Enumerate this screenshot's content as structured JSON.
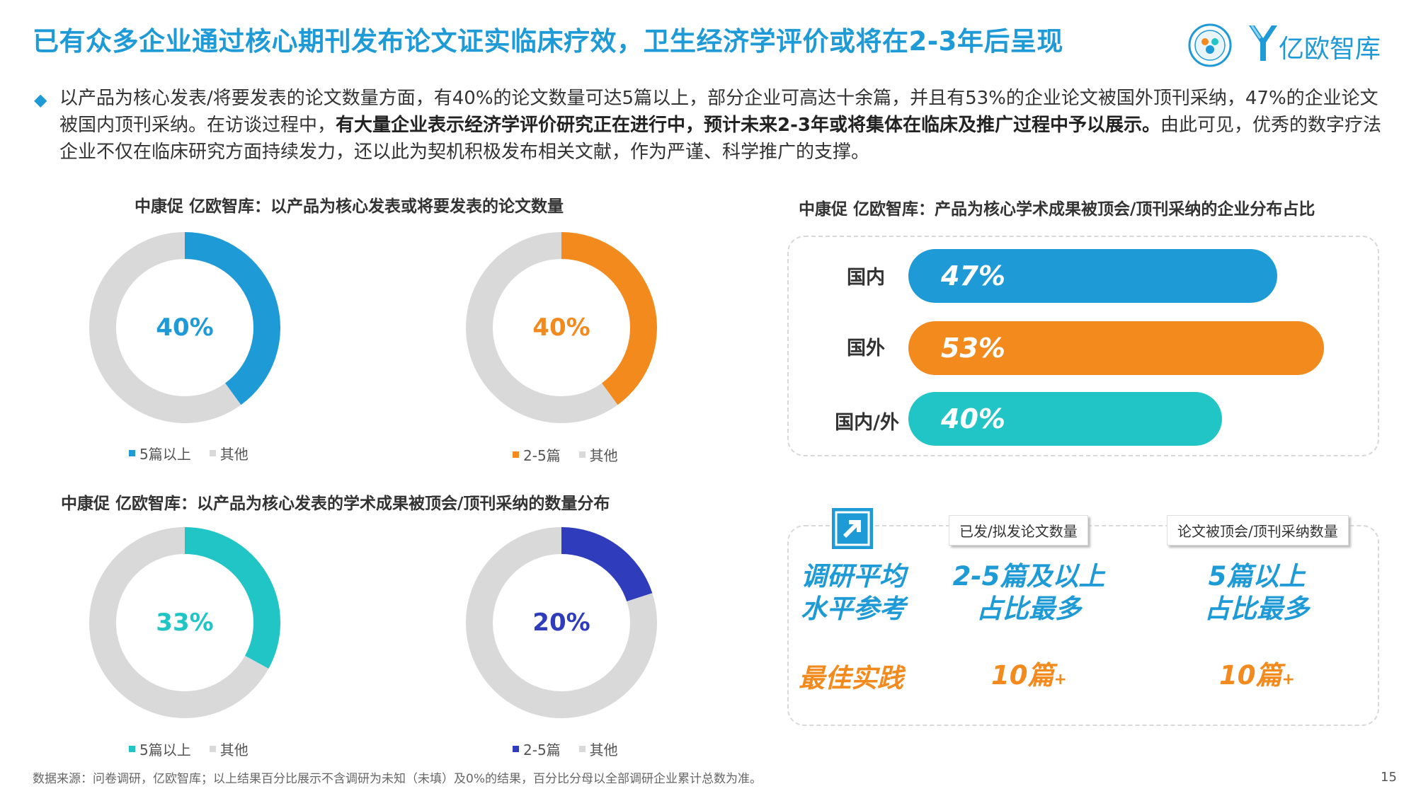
{
  "header": {
    "title": "已有众多企业通过核心期刊发布论文证实临床疗效，卫生经济学评价或将在2-3年后呈现",
    "logo_text": "亿欧智库"
  },
  "intro": {
    "part1": "以产品为核心发表/将要发表的论文数量方面，有40%的论文数量可达5篇以上，部分企业可高达十余篇，并且有53%的企业论文被国外顶刊采纳，47%的企业论文被国内顶刊采纳。在访谈过程中，",
    "bold": "有大量企业表示经济学评价研究正在进行中，预计未来2-3年或将集体在临床及推广过程中予以展示。",
    "part2": "由此可见，优秀的数字疗法企业不仅在临床研究方面持续发力，还以此为契机积极发布相关文献，作为严谨、科学推广的支撑。"
  },
  "colors": {
    "blue": "#1e9ad6",
    "orange": "#f28a1e",
    "teal": "#22c5c5",
    "navy": "#2f3dbd",
    "grey": "#d9d9d9"
  },
  "chart_data": [
    {
      "type": "pie",
      "title": "中康促 亿欧智库：以产品为核心发表或将要发表的论文数量",
      "donuts": [
        {
          "label": "40%",
          "slices": [
            {
              "name": "5篇以上",
              "value": 40
            },
            {
              "name": "其他",
              "value": 60
            }
          ]
        },
        {
          "label": "40%",
          "slices": [
            {
              "name": "2-5篇",
              "value": 40
            },
            {
              "name": "其他",
              "value": 60
            }
          ]
        }
      ]
    },
    {
      "type": "pie",
      "title": "中康促 亿欧智库：以产品为核心发表的学术成果被顶会/顶刊采纳的数量分布",
      "donuts": [
        {
          "label": "33%",
          "slices": [
            {
              "name": "5篇以上",
              "value": 33
            },
            {
              "name": "其他",
              "value": 67
            }
          ]
        },
        {
          "label": "20%",
          "slices": [
            {
              "name": "2-5篇",
              "value": 20
            },
            {
              "name": "其他",
              "value": 80
            }
          ]
        }
      ]
    },
    {
      "type": "bar",
      "title": "中康促 亿欧智库：产品为核心学术成果被顶会/顶刊采纳的企业分布占比",
      "categories": [
        "国内",
        "国外",
        "国内/外"
      ],
      "values": [
        47,
        53,
        40
      ],
      "labels": [
        "47%",
        "53%",
        "40%"
      ]
    }
  ],
  "reference_panel": {
    "left_title": "调研平均\n水平参考",
    "left_bottom": "最佳实践",
    "col1_tag": "已发/拟发论文数量",
    "col1_main": "2-5篇及以上\n占比最多",
    "col1_value": "10篇",
    "col1_suffix": "+",
    "col2_tag": "论文被顶会/顶刊采纳数量",
    "col2_main": "5篇以上\n占比最多",
    "col2_value": "10篇",
    "col2_suffix": "+"
  },
  "footer": {
    "source": "数据来源：问卷调研，亿欧智库；以上结果百分比展示不含调研为未知（未填）及0%的结果，百分比分母以全部调研企业累计总数为准。",
    "page": "15"
  }
}
